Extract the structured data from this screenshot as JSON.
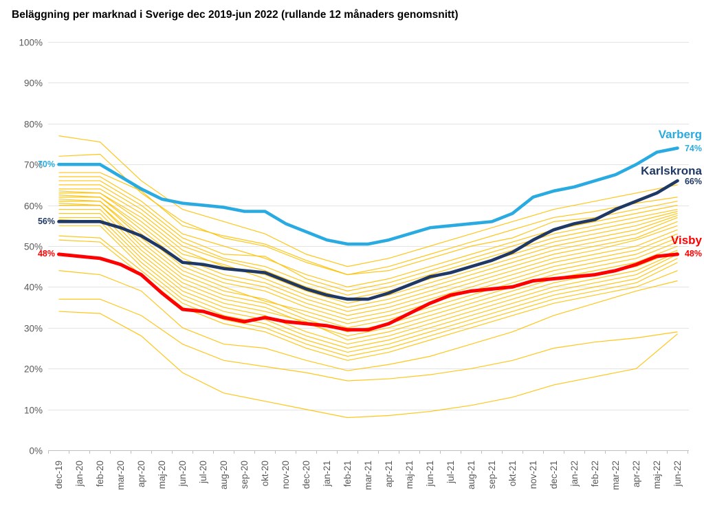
{
  "chart_data": {
    "type": "line",
    "title": "Beläggning per marknad i Sverige dec 2019-jun 2022 (rullande 12 månaders genomsnitt)",
    "x": [
      "dec-19",
      "jan-20",
      "feb-20",
      "mar-20",
      "apr-20",
      "maj-20",
      "jun-20",
      "jul-20",
      "aug-20",
      "sep-20",
      "okt-20",
      "nov-20",
      "dec-20",
      "jan-21",
      "feb-21",
      "mar-21",
      "apr-21",
      "maj-21",
      "jun-21",
      "jul-21",
      "aug-21",
      "sep-21",
      "okt-21",
      "nov-21",
      "dec-21",
      "jan-22",
      "feb-22",
      "mar-22",
      "apr-22",
      "maj-22",
      "jun-22"
    ],
    "ylim": [
      0,
      100
    ],
    "y_ticks": [
      "100%",
      "90%",
      "80%",
      "70%",
      "60%",
      "50%",
      "40%",
      "30%",
      "20%",
      "10%",
      "0%"
    ],
    "grid": true,
    "legend_position": "inline-right",
    "style": {
      "grid_color": "#E4E4E4",
      "axis_color": "#BFBFBF",
      "tick_color": "#595959"
    },
    "series": [
      {
        "name": "Varberg",
        "color": "#29ABE2",
        "width": 4.6,
        "start_label": "70%",
        "end_label": "74%",
        "values": [
          70,
          70,
          70,
          67,
          64,
          61.5,
          60.5,
          60,
          59.5,
          58.5,
          58.5,
          55.5,
          53.5,
          51.5,
          50.5,
          50.5,
          51.5,
          53,
          54.5,
          55,
          55.5,
          56,
          58,
          62,
          63.5,
          64.5,
          66,
          67.5,
          70,
          73,
          74
        ]
      },
      {
        "name": "Karlskrona",
        "color": "#1F3864",
        "width": 4.6,
        "start_label": "56%",
        "end_label": "66%",
        "values": [
          56,
          56,
          56,
          54.5,
          52.5,
          49.5,
          46,
          45.5,
          44.5,
          44,
          43.5,
          41.5,
          39.5,
          38,
          37,
          37,
          38.5,
          40.5,
          42.5,
          43.5,
          45,
          46.5,
          48.5,
          51.5,
          54,
          55.5,
          56.5,
          59,
          61,
          63,
          66
        ]
      },
      {
        "name": "Visby",
        "color": "#FF0000",
        "width": 5,
        "start_label": "48%",
        "end_label": "48%",
        "values": [
          48,
          47.5,
          47,
          45.5,
          43,
          38.5,
          34.5,
          34,
          32.5,
          31.5,
          32.5,
          31.5,
          31,
          30.5,
          29.5,
          29.5,
          31,
          33.5,
          36,
          38,
          39,
          39.5,
          40,
          41.5,
          42,
          42.5,
          43,
          44,
          45.5,
          47.5,
          48
        ]
      }
    ],
    "background_series": {
      "note": "other Swedish markets, unlabeled",
      "color": "#FFC000",
      "step": 2,
      "values": [
        [
          77,
          75.5,
          66,
          59,
          56,
          53,
          48,
          45,
          47,
          50,
          53,
          56,
          59,
          61,
          63,
          65
        ],
        [
          72,
          72.5,
          63,
          56,
          52,
          50,
          46,
          43,
          45,
          48,
          51,
          54,
          57,
          58.5,
          60.5,
          62
        ],
        [
          68,
          68,
          63.5,
          55,
          52.5,
          50.5,
          46.5,
          43,
          44,
          47,
          50,
          52,
          56,
          57,
          59,
          61
        ],
        [
          67,
          67,
          61,
          53,
          50,
          47,
          43,
          40,
          42,
          45,
          48,
          51,
          54,
          56,
          58,
          60
        ],
        [
          66,
          66,
          60,
          52,
          48,
          47.5,
          42,
          39,
          41,
          44,
          47,
          50,
          53,
          55,
          57,
          59
        ],
        [
          65,
          65,
          59,
          51,
          47,
          45,
          41,
          38,
          40,
          43,
          46,
          49,
          52,
          54,
          56,
          58.5
        ],
        [
          64,
          64,
          58,
          50,
          46.5,
          44,
          40,
          37,
          39,
          42,
          45,
          48,
          51,
          53,
          55,
          58
        ],
        [
          63.5,
          63,
          57,
          49,
          45,
          43,
          39,
          36,
          38,
          41,
          44,
          47,
          50,
          52,
          54,
          57.5
        ],
        [
          63,
          63,
          56,
          48,
          45.5,
          42,
          38,
          35,
          37,
          40,
          43,
          46,
          49,
          51,
          53,
          57
        ],
        [
          62.5,
          62,
          55,
          47,
          43,
          41,
          37,
          34,
          36,
          39,
          42,
          45,
          48,
          50,
          52,
          56
        ],
        [
          62,
          62,
          54,
          46,
          42,
          40,
          36,
          33,
          35,
          38,
          41,
          44,
          47,
          49,
          51.5,
          55
        ],
        [
          61.5,
          61,
          53,
          45,
          41,
          39,
          35,
          32,
          34,
          37,
          40,
          43,
          46,
          48,
          50,
          54
        ],
        [
          61,
          61,
          52,
          44,
          40,
          36.5,
          34,
          31,
          33,
          36,
          39,
          42,
          45,
          47,
          49,
          53
        ],
        [
          60.5,
          60,
          51,
          43,
          39,
          37,
          33,
          30,
          32,
          35,
          38,
          41,
          44,
          46,
          48,
          52
        ],
        [
          60,
          60,
          50,
          42,
          38,
          36,
          32,
          29,
          31,
          34,
          37,
          40,
          43,
          45,
          47,
          51
        ],
        [
          59,
          59,
          49,
          41,
          37,
          35,
          31,
          28,
          30,
          33,
          36,
          39,
          42,
          44,
          46,
          50
        ],
        [
          58,
          58,
          48,
          40,
          36,
          34,
          31.5,
          27,
          29,
          32,
          35,
          38,
          41,
          43,
          45,
          49
        ],
        [
          57,
          57,
          47,
          39,
          35,
          33,
          29,
          26,
          28,
          31,
          34,
          37,
          40,
          42,
          44,
          48.5
        ],
        [
          56.5,
          56,
          46,
          38,
          34,
          32,
          28,
          25,
          27,
          30,
          33,
          36,
          39,
          41,
          43,
          48
        ],
        [
          55,
          55,
          45,
          37,
          33,
          31,
          27,
          24,
          26,
          29,
          32,
          35,
          38,
          40,
          42,
          47
        ],
        [
          52.5,
          52,
          44,
          36,
          32,
          30,
          26,
          23,
          25,
          28,
          31,
          34,
          37,
          39,
          41,
          46
        ],
        [
          51.5,
          51,
          43,
          35,
          31,
          29,
          25,
          22,
          24,
          27,
          30,
          33,
          36,
          38,
          40,
          44
        ],
        [
          44,
          43,
          39,
          30,
          26,
          25,
          22,
          19.5,
          21,
          23,
          26,
          29,
          33,
          36,
          39,
          41.5
        ],
        [
          37,
          37,
          33,
          26,
          22,
          20.5,
          19,
          17,
          17.5,
          18.5,
          20,
          22,
          25,
          26.5,
          27.5,
          29
        ],
        [
          34,
          33.5,
          28,
          19,
          14,
          12,
          10,
          8,
          8.5,
          9.5,
          11,
          13,
          16,
          18,
          20,
          28.5
        ]
      ]
    }
  }
}
